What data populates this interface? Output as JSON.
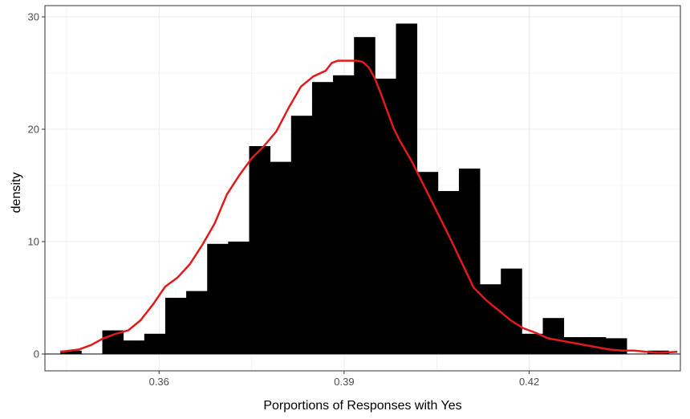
{
  "chart_data": {
    "type": "bar",
    "subtype": "histogram with density curve",
    "title": "",
    "xlabel": "Porportions of Responses with Yes",
    "ylabel": "density",
    "xlim": [
      0.3415,
      0.4445
    ],
    "ylim": [
      -1.5,
      31.0
    ],
    "x_ticks": [
      0.36,
      0.39,
      0.42
    ],
    "x_tick_labels": [
      "0.36",
      "0.39",
      "0.42"
    ],
    "y_ticks": [
      0,
      10,
      20,
      30
    ],
    "y_tick_labels": [
      "0",
      "10",
      "20",
      "30"
    ],
    "grid": true,
    "bar_color": "#000000",
    "curve_color": "#e31a1c",
    "bin_width": 0.0034,
    "bins": [
      {
        "x": 0.3457,
        "density": 0.3
      },
      {
        "x": 0.3491,
        "density": 0.0
      },
      {
        "x": 0.3525,
        "density": 2.1
      },
      {
        "x": 0.3559,
        "density": 1.2
      },
      {
        "x": 0.3593,
        "density": 1.8
      },
      {
        "x": 0.3627,
        "density": 5.0
      },
      {
        "x": 0.3661,
        "density": 5.6
      },
      {
        "x": 0.3695,
        "density": 9.8
      },
      {
        "x": 0.3729,
        "density": 10.0
      },
      {
        "x": 0.3763,
        "density": 18.5
      },
      {
        "x": 0.3797,
        "density": 17.1
      },
      {
        "x": 0.3831,
        "density": 21.2
      },
      {
        "x": 0.3865,
        "density": 24.2
      },
      {
        "x": 0.3899,
        "density": 24.8
      },
      {
        "x": 0.3933,
        "density": 28.2
      },
      {
        "x": 0.3967,
        "density": 24.5
      },
      {
        "x": 0.4001,
        "density": 29.4
      },
      {
        "x": 0.4035,
        "density": 16.2
      },
      {
        "x": 0.4069,
        "density": 14.5
      },
      {
        "x": 0.4103,
        "density": 16.5
      },
      {
        "x": 0.4137,
        "density": 6.2
      },
      {
        "x": 0.4171,
        "density": 7.6
      },
      {
        "x": 0.4205,
        "density": 1.8
      },
      {
        "x": 0.4239,
        "density": 3.2
      },
      {
        "x": 0.4273,
        "density": 1.5
      },
      {
        "x": 0.4307,
        "density": 1.5
      },
      {
        "x": 0.4341,
        "density": 1.4
      },
      {
        "x": 0.4375,
        "density": 0.0
      },
      {
        "x": 0.4409,
        "density": 0.3
      }
    ],
    "density_curve": {
      "x": [
        0.344,
        0.347,
        0.349,
        0.351,
        0.353,
        0.355,
        0.357,
        0.359,
        0.361,
        0.363,
        0.365,
        0.367,
        0.369,
        0.371,
        0.373,
        0.375,
        0.377,
        0.379,
        0.381,
        0.383,
        0.385,
        0.387,
        0.388,
        0.389,
        0.39,
        0.391,
        0.392,
        0.393,
        0.394,
        0.395,
        0.396,
        0.397,
        0.398,
        0.399,
        0.401,
        0.403,
        0.405,
        0.407,
        0.409,
        0.411,
        0.413,
        0.415,
        0.417,
        0.419,
        0.421,
        0.423,
        0.425,
        0.427,
        0.429,
        0.431,
        0.433,
        0.435,
        0.437,
        0.439,
        0.441,
        0.444
      ],
      "y": [
        0.2,
        0.4,
        0.8,
        1.4,
        1.8,
        2.1,
        3.0,
        4.4,
        6.0,
        6.8,
        8.0,
        9.7,
        11.6,
        14.2,
        15.9,
        17.4,
        18.5,
        19.8,
        21.9,
        23.8,
        24.7,
        25.2,
        25.9,
        26.1,
        26.1,
        26.1,
        26.1,
        26.0,
        25.5,
        24.5,
        23.1,
        21.6,
        20.1,
        19.0,
        17.1,
        14.9,
        12.7,
        10.5,
        8.2,
        5.9,
        4.8,
        3.9,
        3.0,
        2.3,
        1.9,
        1.4,
        1.2,
        1.0,
        0.8,
        0.6,
        0.4,
        0.3,
        0.3,
        0.2,
        0.1,
        0.2
      ]
    }
  }
}
